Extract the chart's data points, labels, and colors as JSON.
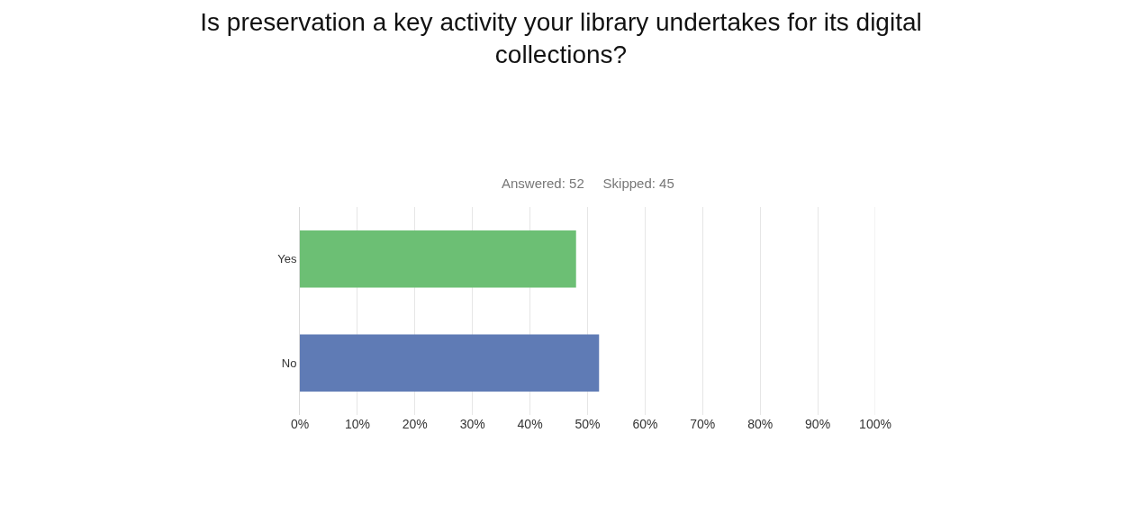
{
  "chart_data": {
    "type": "bar",
    "orientation": "horizontal",
    "title": "Is preservation a key activity your library undertakes for its digital collections?",
    "subtitle": "Answered: 52    Skipped: 45",
    "categories": [
      "Yes",
      "No"
    ],
    "colors": [
      "#6cbf74",
      "#5f7bb5"
    ],
    "values": [
      48,
      52
    ],
    "xlim": [
      0,
      100
    ],
    "xticks": [
      {
        "value": 0,
        "label": "0%"
      },
      {
        "value": 10,
        "label": "10%"
      },
      {
        "value": 20,
        "label": "20%"
      },
      {
        "value": 30,
        "label": "30%"
      },
      {
        "value": 40,
        "label": "40%"
      },
      {
        "value": 50,
        "label": "50%"
      },
      {
        "value": 60,
        "label": "60%"
      },
      {
        "value": 70,
        "label": "70%"
      },
      {
        "value": 80,
        "label": "80%"
      },
      {
        "value": 90,
        "label": "90%"
      },
      {
        "value": 100,
        "label": "100%"
      }
    ],
    "grid": "x",
    "legend": false
  }
}
